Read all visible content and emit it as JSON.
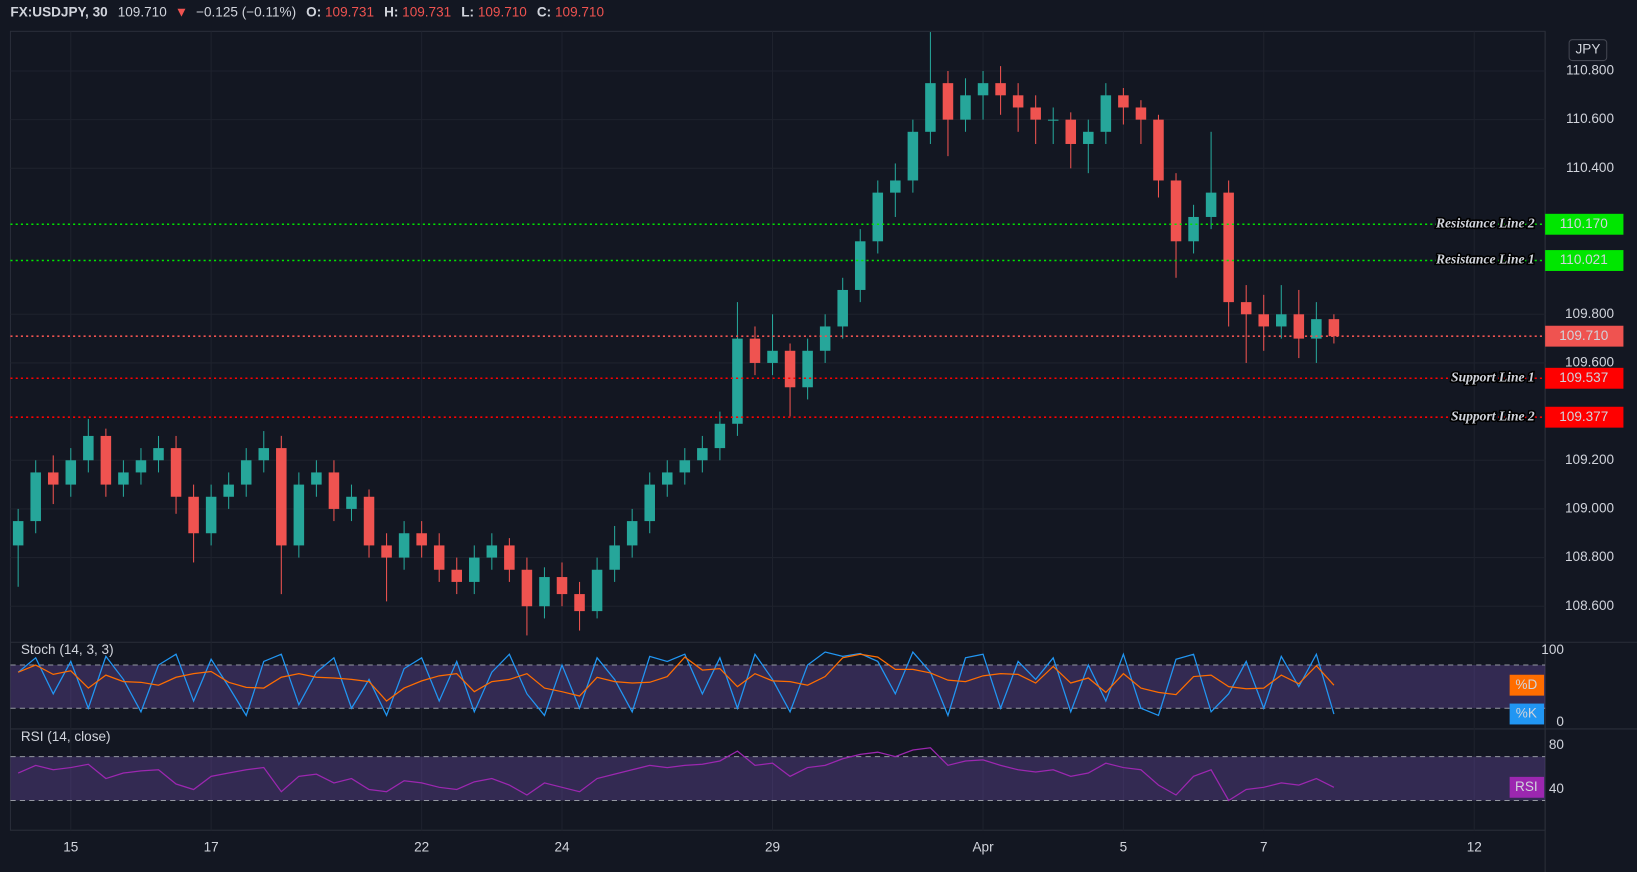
{
  "header": {
    "symbol": "FX:USDJPY, 30",
    "last": "109.710",
    "arrow": "▼",
    "change": "−0.125 (−0.11%)",
    "open_label": "O:",
    "open": "109.731",
    "high_label": "H:",
    "high": "109.731",
    "low_label": "L:",
    "low": "109.710",
    "close_label": "C:",
    "close": "109.710"
  },
  "chart_data": [
    {
      "type": "candlestick",
      "unit_label": "JPY",
      "up_color": "#26a69a",
      "down_color": "#ef5350",
      "x": [
        -0.75,
        -0.5,
        -0.25,
        0,
        0.25,
        0.5,
        0.75,
        1,
        1.25,
        1.5,
        1.75,
        2,
        2.25,
        2.5,
        2.75,
        3,
        3.25,
        3.5,
        3.75,
        4,
        4.25,
        4.5,
        4.75,
        5,
        5.25,
        5.5,
        5.75,
        6,
        6.25,
        6.5,
        6.75,
        7,
        7.25,
        7.5,
        7.75,
        8,
        8.25,
        8.5,
        8.75,
        9,
        9.25,
        9.5,
        9.75,
        10,
        10.25,
        10.5,
        10.75,
        11,
        11.25,
        11.5,
        11.75,
        12,
        12.25,
        12.5,
        12.75,
        13,
        13.25,
        13.5,
        13.75,
        14,
        14.25,
        14.5,
        14.75,
        15,
        15.25,
        15.5,
        15.75,
        16,
        16.25,
        16.5,
        16.75,
        17,
        17.25,
        17.5,
        17.75,
        18
      ],
      "open": [
        108.85,
        108.95,
        109.15,
        109.1,
        109.2,
        109.3,
        109.1,
        109.15,
        109.2,
        109.25,
        109.05,
        108.9,
        109.05,
        109.1,
        109.2,
        109.25,
        108.85,
        109.1,
        109.15,
        109.0,
        109.05,
        108.85,
        108.8,
        108.9,
        108.85,
        108.75,
        108.7,
        108.8,
        108.85,
        108.75,
        108.6,
        108.72,
        108.65,
        108.58,
        108.75,
        108.85,
        108.95,
        109.1,
        109.15,
        109.2,
        109.25,
        109.35,
        109.7,
        109.6,
        109.65,
        109.5,
        109.65,
        109.75,
        109.9,
        110.1,
        110.3,
        110.35,
        110.55,
        110.75,
        110.6,
        110.7,
        110.75,
        110.7,
        110.65,
        110.6,
        110.6,
        110.5,
        110.55,
        110.7,
        110.65,
        110.6,
        110.35,
        110.1,
        110.2,
        110.3,
        109.85,
        109.8,
        109.75,
        109.8,
        109.7,
        109.78
      ],
      "high": [
        109.0,
        109.2,
        109.22,
        109.25,
        109.37,
        109.33,
        109.2,
        109.25,
        109.3,
        109.3,
        109.1,
        109.1,
        109.15,
        109.25,
        109.32,
        109.3,
        109.15,
        109.2,
        109.2,
        109.1,
        109.08,
        108.9,
        108.95,
        108.95,
        108.9,
        108.8,
        108.85,
        108.9,
        108.88,
        108.8,
        108.76,
        108.78,
        108.7,
        108.8,
        108.93,
        109.0,
        109.15,
        109.2,
        109.25,
        109.3,
        109.4,
        109.85,
        109.75,
        109.8,
        109.68,
        109.7,
        109.8,
        109.95,
        110.15,
        110.35,
        110.42,
        110.6,
        110.96,
        110.8,
        110.77,
        110.8,
        110.82,
        110.75,
        110.7,
        110.65,
        110.63,
        110.6,
        110.75,
        110.73,
        110.68,
        110.62,
        110.38,
        110.25,
        110.55,
        110.35,
        109.92,
        109.88,
        109.92,
        109.9,
        109.85,
        109.8
      ],
      "low": [
        108.68,
        108.9,
        109.02,
        109.05,
        109.15,
        109.05,
        109.05,
        109.1,
        109.15,
        108.98,
        108.78,
        108.85,
        109.0,
        109.05,
        109.15,
        108.65,
        108.8,
        109.05,
        108.95,
        108.95,
        108.8,
        108.62,
        108.75,
        108.8,
        108.7,
        108.65,
        108.65,
        108.75,
        108.7,
        108.48,
        108.55,
        108.6,
        108.5,
        108.55,
        108.7,
        108.8,
        108.9,
        109.05,
        109.1,
        109.15,
        109.2,
        109.3,
        109.55,
        109.55,
        109.38,
        109.45,
        109.6,
        109.7,
        109.85,
        110.05,
        110.2,
        110.3,
        110.5,
        110.45,
        110.55,
        110.6,
        110.62,
        110.55,
        110.5,
        110.5,
        110.4,
        110.38,
        110.5,
        110.58,
        110.5,
        110.28,
        109.95,
        110.05,
        110.15,
        109.75,
        109.6,
        109.65,
        109.7,
        109.62,
        109.6,
        109.68
      ],
      "close": [
        108.95,
        109.15,
        109.1,
        109.2,
        109.3,
        109.1,
        109.15,
        109.2,
        109.25,
        109.05,
        108.9,
        109.05,
        109.1,
        109.2,
        109.25,
        108.85,
        109.1,
        109.15,
        109.0,
        109.05,
        108.85,
        108.8,
        108.9,
        108.85,
        108.75,
        108.7,
        108.8,
        108.85,
        108.75,
        108.6,
        108.72,
        108.65,
        108.58,
        108.75,
        108.85,
        108.95,
        109.1,
        109.15,
        109.2,
        109.25,
        109.35,
        109.7,
        109.6,
        109.65,
        109.5,
        109.65,
        109.75,
        109.9,
        110.1,
        110.3,
        110.35,
        110.55,
        110.75,
        110.6,
        110.7,
        110.75,
        110.7,
        110.65,
        110.6,
        110.6,
        110.5,
        110.55,
        110.7,
        110.65,
        110.6,
        110.35,
        110.1,
        110.2,
        110.3,
        109.85,
        109.8,
        109.75,
        109.8,
        109.7,
        109.78,
        109.71
      ],
      "xlim": [
        -0.86,
        21.01
      ],
      "xticks": [
        {
          "value": 0,
          "label": "15"
        },
        {
          "value": 2,
          "label": "17"
        },
        {
          "value": 5,
          "label": "22"
        },
        {
          "value": 7,
          "label": "24"
        },
        {
          "value": 10,
          "label": "29"
        },
        {
          "value": 13,
          "label": "Apr"
        },
        {
          "value": 15,
          "label": "5"
        },
        {
          "value": 17,
          "label": "7"
        },
        {
          "value": 20,
          "label": "12"
        }
      ],
      "ylim": [
        108.452,
        110.963
      ],
      "yticks": [
        {
          "value": 108.6,
          "label": "108.600"
        },
        {
          "value": 108.8,
          "label": "108.800"
        },
        {
          "value": 109.0,
          "label": "109.000"
        },
        {
          "value": 109.2,
          "label": "109.200"
        },
        {
          "value": 109.6,
          "label": "109.600"
        },
        {
          "value": 109.8,
          "label": "109.800"
        },
        {
          "value": 110.4,
          "label": "110.400"
        },
        {
          "value": 110.6,
          "label": "110.600"
        },
        {
          "value": 110.8,
          "label": "110.800"
        }
      ],
      "grid": true,
      "levels": [
        {
          "name": "Resistance Line 2",
          "value": 110.17,
          "value_label": "110.170",
          "color": "#00e600"
        },
        {
          "name": "Resistance Line 1",
          "value": 110.021,
          "value_label": "110.021",
          "color": "#00e600"
        },
        {
          "value": 109.71,
          "value_label": "109.710",
          "color": "#ef5350"
        },
        {
          "name": "Support Line 1",
          "value": 109.537,
          "value_label": "109.537",
          "color": "#ff0000"
        },
        {
          "name": "Support Line 2",
          "value": 109.377,
          "value_label": "109.377",
          "color": "#ff0000"
        }
      ]
    },
    {
      "type": "line",
      "title": "Stoch (14, 3, 3)",
      "ylim": [
        -8.7,
        111.6
      ],
      "yticks": [
        0,
        100
      ],
      "bands": [
        20,
        80
      ],
      "series": [
        {
          "name": "%K",
          "color": "#2196f3",
          "values": [
            70,
            90,
            40,
            85,
            20,
            92,
            60,
            15,
            80,
            95,
            30,
            88,
            50,
            10,
            85,
            95,
            25,
            70,
            90,
            20,
            60,
            10,
            75,
            90,
            30,
            85,
            15,
            70,
            95,
            40,
            10,
            80,
            20,
            90,
            60,
            15,
            92,
            85,
            95,
            40,
            90,
            20,
            95,
            60,
            15,
            80,
            98,
            92,
            96,
            85,
            40,
            98,
            70,
            10,
            90,
            95,
            20,
            85,
            60,
            90,
            15,
            80,
            30,
            95,
            20,
            10,
            88,
            95,
            15,
            40,
            85,
            20,
            92,
            50,
            95,
            12
          ]
        },
        {
          "name": "%D",
          "color": "#ff6d00",
          "values": [
            70,
            80,
            67,
            72,
            48,
            66,
            57,
            56,
            52,
            63,
            68,
            71,
            56,
            49,
            48,
            63,
            68,
            63,
            62,
            60,
            57,
            30,
            48,
            58,
            65,
            68,
            43,
            57,
            60,
            68,
            48,
            43,
            37,
            63,
            57,
            55,
            56,
            64,
            91,
            73,
            75,
            50,
            68,
            58,
            57,
            52,
            64,
            90,
            95,
            91,
            74,
            74,
            69,
            59,
            57,
            65,
            68,
            67,
            55,
            78,
            55,
            62,
            42,
            68,
            48,
            42,
            39,
            64,
            66,
            50,
            47,
            48,
            66,
            54,
            79,
            52
          ]
        }
      ]
    },
    {
      "type": "line",
      "title": "RSI (14, close)",
      "ylim": [
        2.9,
        95.2
      ],
      "yticks": [
        40,
        80
      ],
      "bands": [
        30,
        70
      ],
      "series": [
        {
          "name": "RSI",
          "color": "#9c27b0",
          "values": [
            55,
            62,
            58,
            60,
            63,
            50,
            55,
            57,
            58,
            45,
            40,
            52,
            55,
            58,
            60,
            38,
            52,
            54,
            46,
            50,
            40,
            38,
            48,
            46,
            42,
            40,
            47,
            50,
            44,
            35,
            46,
            42,
            38,
            50,
            54,
            58,
            62,
            60,
            62,
            63,
            66,
            75,
            62,
            64,
            52,
            60,
            62,
            68,
            72,
            74,
            70,
            76,
            78,
            62,
            66,
            67,
            62,
            58,
            56,
            58,
            52,
            55,
            64,
            60,
            58,
            44,
            35,
            52,
            58,
            30,
            40,
            42,
            46,
            44,
            50,
            42
          ]
        }
      ]
    }
  ]
}
